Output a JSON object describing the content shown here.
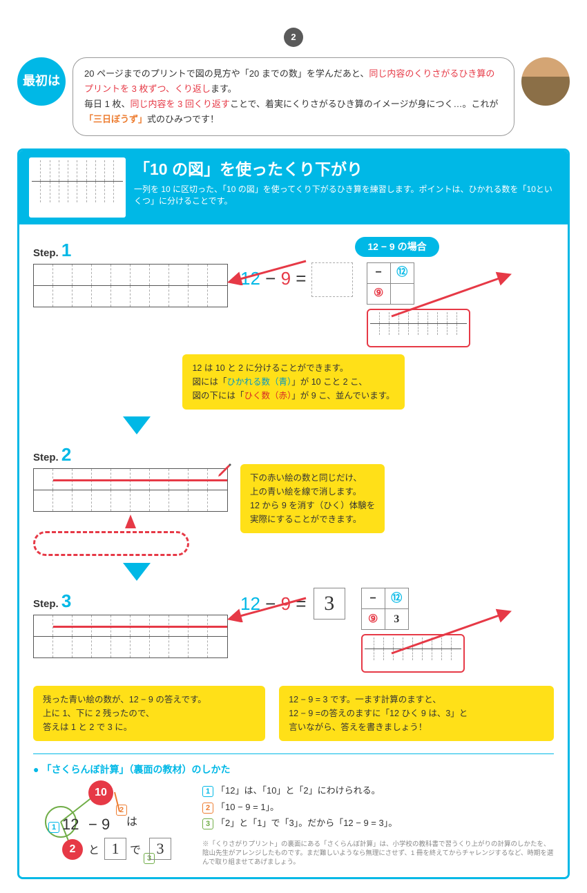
{
  "page_number": "2",
  "intro": {
    "badge": "最初は",
    "line1a": "20 ページまでのプリントで図の見方や「20 までの数」を学んだあと、",
    "line1b": "同じ内容のくりさがるひき算のプリントを 3 枚ずつ、くり返し",
    "line1c": "ます。",
    "line2a": "毎日 1 枚、",
    "line2b": "同じ内容を 3 回くり返す",
    "line2c": "ことで、着実にくりさがるひき算のイメージが身につく…。これが",
    "line2d": "「三日ぼうず」",
    "line2e": "式のひみつです！"
  },
  "header": {
    "title": "「10 の図」を使ったくり下がり",
    "subtitle": "一列を 10 に区切った、「10 の図」を使ってくり下がるひき算を練習します。ポイントは、ひかれる数を「10といくつ」に分けることです。"
  },
  "example_pill": "12 − 9 の場合",
  "equation": {
    "a": "12",
    "op": "−",
    "b": "9",
    "eq": "=",
    "ans": "3"
  },
  "table_mini": {
    "minus": "−",
    "top": "⑫",
    "left": "⑨"
  },
  "steps": {
    "s1": "Step.",
    "n1": "1",
    "s2": "Step.",
    "n2": "2",
    "s3": "Step.",
    "n3": "3"
  },
  "callout1": {
    "l1": "12 は 10 と 2 に分けることができます。",
    "l2a": "図には「",
    "l2b": "ひかれる数（青）",
    "l2c": "」が 10 こと 2 こ、",
    "l3a": "図の下には「",
    "l3b": "ひく数（赤）",
    "l3c": "」が 9 こ、並んでいます。"
  },
  "callout2": {
    "l1": "下の赤い絵の数と同じだけ、",
    "l2": "上の青い絵を線で消します。",
    "l3": "12 から 9 を消す（ひく）体験を",
    "l4": "実際にすることができます。"
  },
  "callout3a": {
    "l1": "残った青い絵の数が、12 − 9 の答えです。",
    "l2": "上に 1、下に 2 残ったので、",
    "l3": "答えは 1 と 2 で 3 に。"
  },
  "callout3b": {
    "l1": "12 − 9 = 3 です。一ます計算のますと、",
    "l2": "12 − 9 =の答えのますに「12 ひく 9 は、3」と",
    "l3": "言いながら、答えを書きましょう！"
  },
  "bottom": {
    "title": "「さくらんぼ計算」（裏面の教材）のしかた",
    "items": [
      "「12」は、「10」と「2」にわけられる。",
      "「10 − 9 = 1」。",
      "「2」と「1」で「3」。だから「12 − 9 = 3」。"
    ],
    "cherry": {
      "c10": "10",
      "c2": "2",
      "main": "12 − 9",
      "ha": "は",
      "to": "と",
      "de": "で",
      "a1": "1",
      "a3": "3"
    },
    "fine": "※「くりさがりプリント」の裏面にある「さくらんぼ計算」は、小学校の教科書で習うくり上がりの計算のしかたを、陰山先生がアレンジしたものです。まだ難しいようなら無理にさせず、1 冊を終えてからチャレンジするなど、時期を選んで取り組ませてあげましょう。"
  },
  "colors": {
    "cyan": "#00b8e6",
    "red": "#e63946",
    "yellow": "#ffe018",
    "blue_icon": "#0097c4",
    "red_icon": "#d62828",
    "orange": "#ed7d31"
  }
}
